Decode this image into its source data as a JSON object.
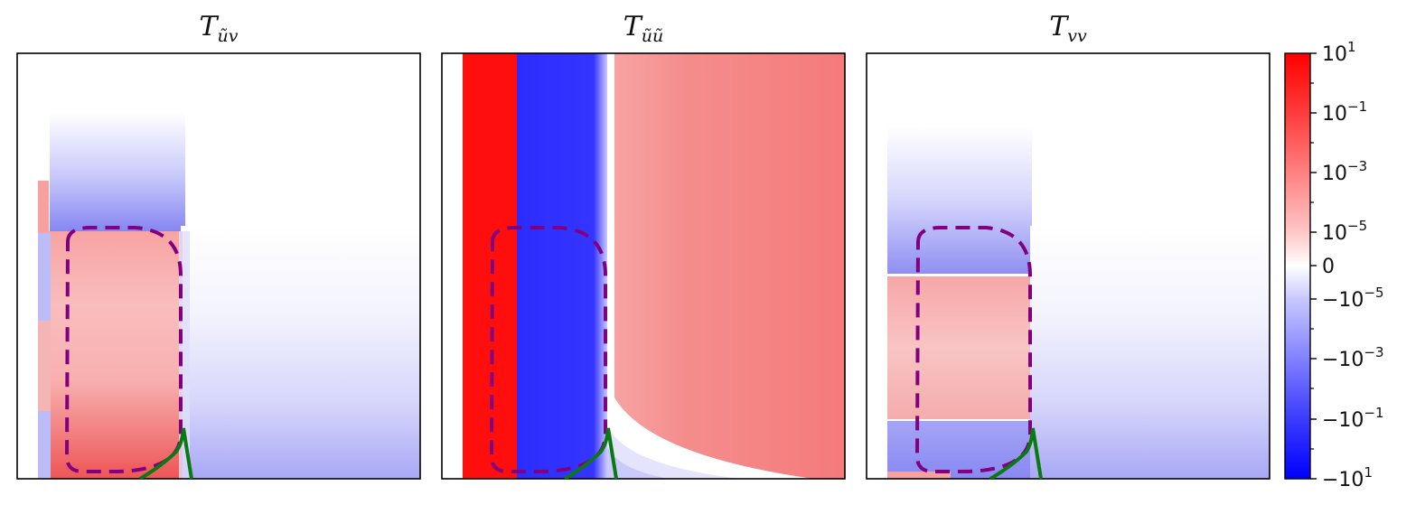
{
  "chart_data": [
    {
      "type": "heatmap",
      "title_main": "T",
      "title_sub": "ũv",
      "title": "T_ũv",
      "xlabel": "",
      "ylabel": ""
    },
    {
      "type": "heatmap",
      "title_main": "T",
      "title_sub": "ũũ",
      "title": "T_ũũ",
      "xlabel": "",
      "ylabel": ""
    },
    {
      "type": "heatmap",
      "title_main": "T",
      "title_sub": "vv",
      "title": "T_vv",
      "xlabel": "",
      "ylabel": ""
    }
  ],
  "colorbar": {
    "scale": "symlog",
    "range": [
      "-10^1",
      "10^1"
    ],
    "colormap": "bwr",
    "colors": {
      "positive": "#ff0000",
      "zero": "#ffffff",
      "negative": "#0000ff"
    },
    "ticks": [
      {
        "base": "10",
        "exp": "1",
        "sign": ""
      },
      {
        "base": "10",
        "exp": "−1",
        "sign": ""
      },
      {
        "base": "10",
        "exp": "−3",
        "sign": ""
      },
      {
        "base": "10",
        "exp": "−5",
        "sign": ""
      },
      {
        "base": "0",
        "exp": "",
        "sign": ""
      },
      {
        "base": "10",
        "exp": "−5",
        "sign": "−"
      },
      {
        "base": "10",
        "exp": "−3",
        "sign": "−"
      },
      {
        "base": "10",
        "exp": "−1",
        "sign": "−"
      },
      {
        "base": "10",
        "exp": "1",
        "sign": "−"
      }
    ]
  },
  "overlays": {
    "dashed_contour_color": "#800080",
    "solid_curve_color": "#0a7a10"
  }
}
